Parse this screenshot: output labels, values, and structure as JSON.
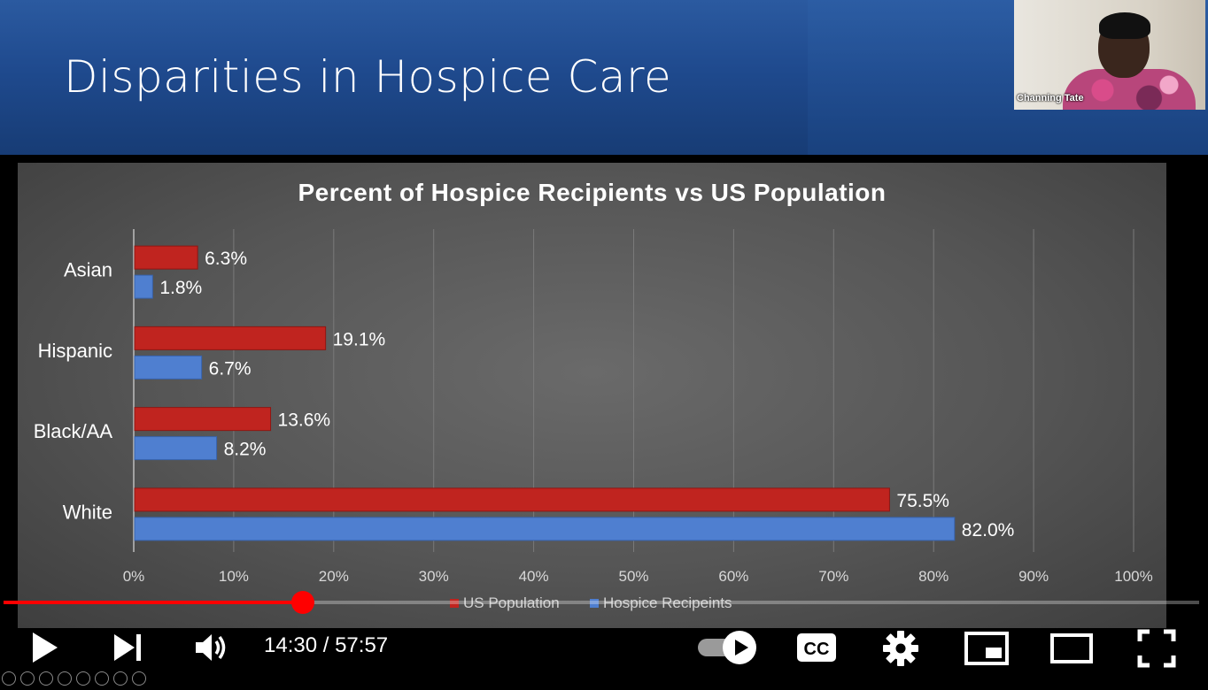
{
  "slide": {
    "title": "Disparities in Hospice Care"
  },
  "webcam": {
    "participant_name": "Channing Tate"
  },
  "chart_data": {
    "type": "bar",
    "orientation": "horizontal",
    "title": "Percent of Hospice Recipients vs US Population",
    "categories": [
      "Asian",
      "Hispanic",
      "Black/AA",
      "White"
    ],
    "series": [
      {
        "name": "US Population",
        "color": "#c0241f",
        "values": [
          6.3,
          19.1,
          13.6,
          75.5
        ],
        "labels": [
          "6.3%",
          "19.1%",
          "13.6%",
          "75.5%"
        ]
      },
      {
        "name": "Hospice Recipeints",
        "color": "#4f7fd0",
        "values": [
          1.8,
          6.7,
          8.2,
          82.0
        ],
        "labels": [
          "1.8%",
          "6.7%",
          "8.2%",
          "82.0%"
        ]
      }
    ],
    "xlim": [
      0,
      100
    ],
    "xticks": [
      "0%",
      "10%",
      "20%",
      "30%",
      "40%",
      "50%",
      "60%",
      "70%",
      "80%",
      "90%",
      "100%"
    ],
    "grid": true,
    "legend_position": "bottom"
  },
  "player": {
    "current_time": "14:30",
    "separator": " / ",
    "duration": "57:57",
    "progress_fraction": 0.25,
    "icons": [
      "play-icon",
      "next-icon",
      "volume-icon",
      "autoplay-toggle",
      "captions-icon",
      "settings-icon",
      "miniplayer-icon",
      "theater-icon",
      "fullscreen-icon"
    ],
    "cc_label": "CC"
  }
}
